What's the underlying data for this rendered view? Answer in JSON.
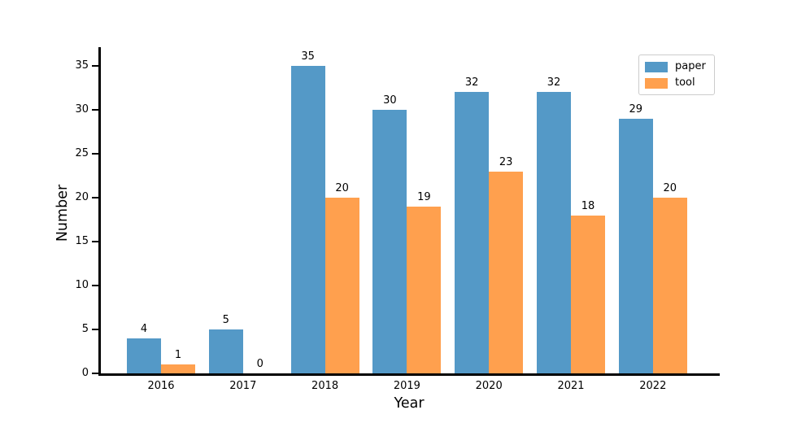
{
  "figure": {
    "background": "#ffffff",
    "axis_color": "#000000",
    "legend_border_color": "#cccccc"
  },
  "chart_data": {
    "type": "bar",
    "title": "",
    "xlabel": "Year",
    "ylabel": "Number",
    "categories": [
      "2016",
      "2017",
      "2018",
      "2019",
      "2020",
      "2021",
      "2022"
    ],
    "series": [
      {
        "name": "paper",
        "color": "#5499c7",
        "values": [
          4,
          5,
          35,
          30,
          32,
          32,
          29
        ]
      },
      {
        "name": "tool",
        "color": "#ffa04e",
        "values": [
          1,
          0,
          20,
          19,
          23,
          18,
          20
        ]
      }
    ],
    "bar_value_labels_shown": true,
    "ylim": [
      0,
      37
    ],
    "yticks": [
      0,
      5,
      10,
      15,
      20,
      25,
      30,
      35
    ],
    "grid": false,
    "legend_position": "upper right"
  }
}
